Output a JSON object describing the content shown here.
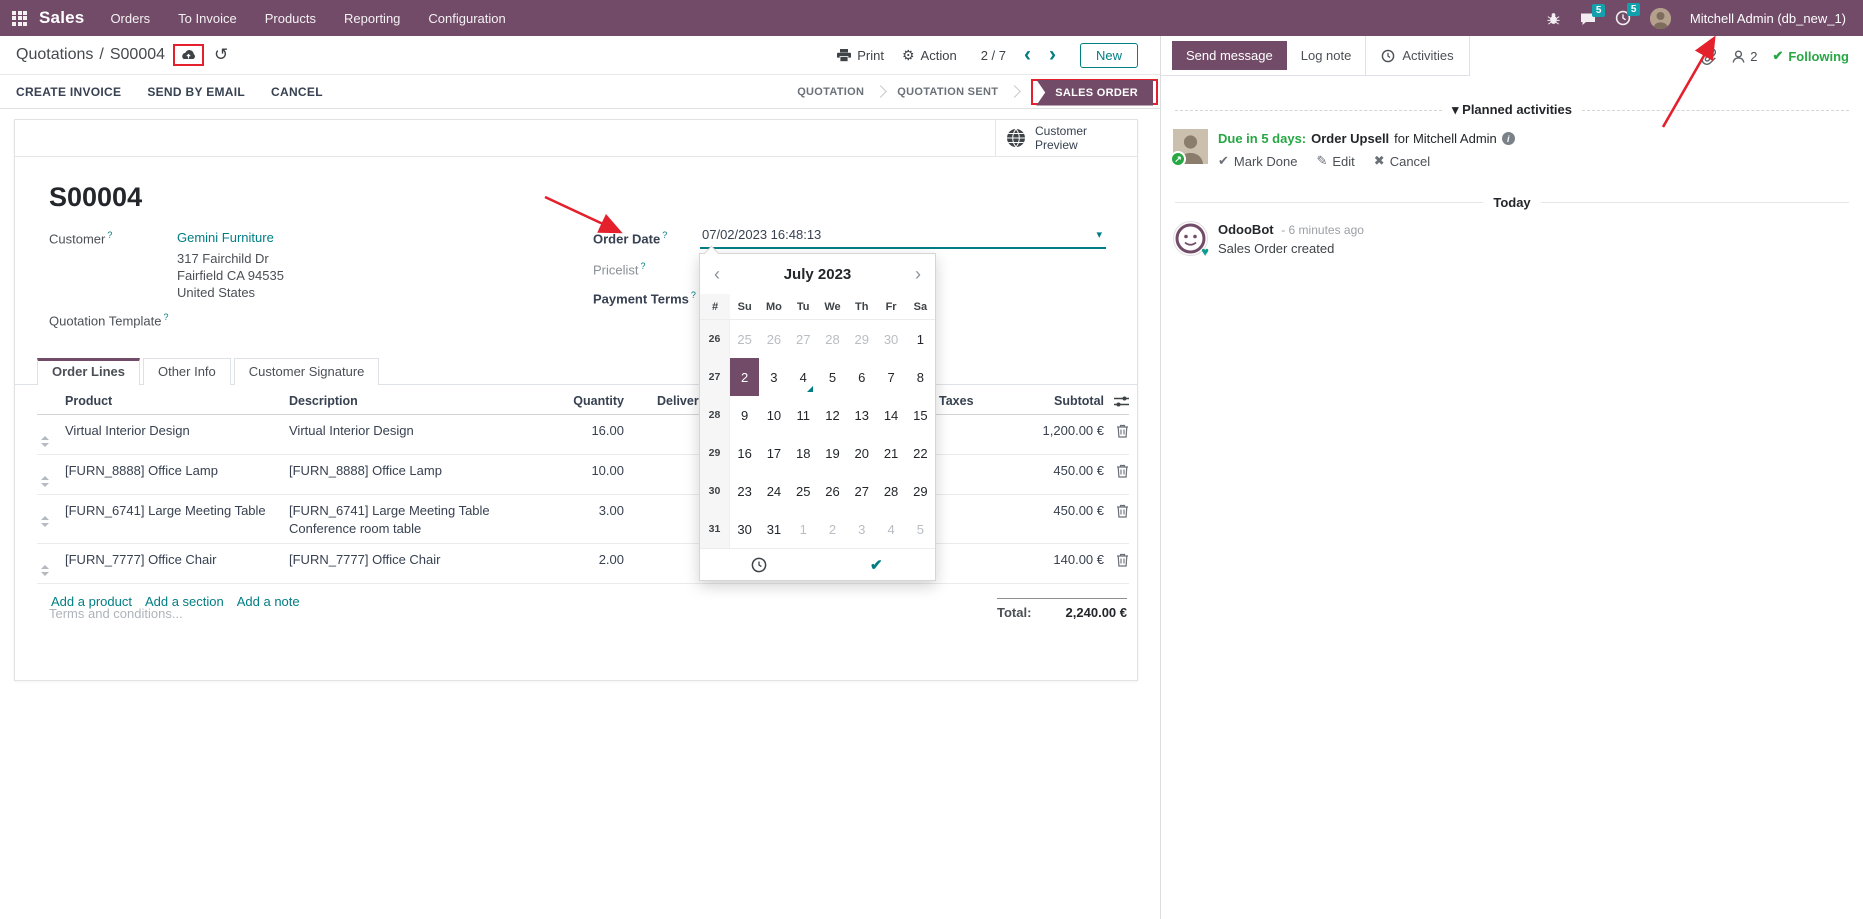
{
  "topbar": {
    "app_name": "Sales",
    "menu": [
      "Orders",
      "To Invoice",
      "Products",
      "Reporting",
      "Configuration"
    ],
    "messages_badge": "5",
    "activities_badge": "5",
    "user": "Mitchell Admin (db_new_1)"
  },
  "breadcrumb": {
    "parent": "Quotations",
    "sep": "/",
    "current": "S00004"
  },
  "control_panel": {
    "print": "Print",
    "action": "Action",
    "pager": "2 / 7",
    "prev": "‹",
    "next": "›",
    "new": "New"
  },
  "action_buttons": {
    "create_invoice": "CREATE INVOICE",
    "send_by_email": "SEND BY EMAIL",
    "cancel": "CANCEL"
  },
  "statusbar": {
    "quotation": "QUOTATION",
    "quotation_sent": "QUOTATION SENT",
    "sales_order": "SALES ORDER"
  },
  "form": {
    "preview_button": "Customer Preview",
    "title": "S00004",
    "customer_label": "Customer",
    "customer_name": "Gemini Furniture",
    "customer_address": [
      "317 Fairchild Dr",
      "Fairfield CA 94535",
      "United States"
    ],
    "quotation_template_label": "Quotation Template",
    "order_date_label": "Order Date",
    "order_date_value": "07/02/2023 16:48:13",
    "pricelist_label": "Pricelist",
    "payment_terms_label": "Payment Terms",
    "tabs": [
      "Order Lines",
      "Other Info",
      "Customer Signature"
    ],
    "table": {
      "headers": {
        "product": "Product",
        "description": "Description",
        "quantity": "Quantity",
        "delivered": "Delivered",
        "taxes": "Taxes",
        "subtotal": "Subtotal"
      },
      "rows": [
        {
          "product": "Virtual Interior Design",
          "desc": [
            "Virtual Interior Design"
          ],
          "qty": "16.00",
          "subtotal": "1,200.00 €"
        },
        {
          "product": "[FURN_8888] Office Lamp",
          "desc": [
            "[FURN_8888] Office Lamp"
          ],
          "qty": "10.00",
          "subtotal": "450.00 €"
        },
        {
          "product": "[FURN_6741] Large Meeting Table",
          "desc": [
            "[FURN_6741] Large Meeting Table",
            "Conference room table"
          ],
          "qty": "3.00",
          "subtotal": "450.00 €"
        },
        {
          "product": "[FURN_7777] Office Chair",
          "desc": [
            "[FURN_7777] Office Chair"
          ],
          "qty": "2.00",
          "subtotal": "140.00 €"
        }
      ],
      "footer_links": [
        "Add a product",
        "Add a section",
        "Add a note"
      ]
    },
    "terms_placeholder": "Terms and conditions...",
    "total_label": "Total:",
    "total_value": "2,240.00 €"
  },
  "datepicker": {
    "month": "July 2023",
    "prev": "‹",
    "next": "›",
    "day_headers": [
      "#",
      "Su",
      "Mo",
      "Tu",
      "We",
      "Th",
      "Fr",
      "Sa"
    ],
    "weeks": [
      {
        "num": "26",
        "days": [
          {
            "d": "25",
            "m": 1
          },
          {
            "d": "26",
            "m": 1
          },
          {
            "d": "27",
            "m": 1
          },
          {
            "d": "28",
            "m": 1
          },
          {
            "d": "29",
            "m": 1
          },
          {
            "d": "30",
            "m": 1
          },
          {
            "d": "1"
          }
        ]
      },
      {
        "num": "27",
        "days": [
          {
            "d": "2",
            "s": 1
          },
          {
            "d": "3"
          },
          {
            "d": "4",
            "t": 1
          },
          {
            "d": "5"
          },
          {
            "d": "6"
          },
          {
            "d": "7"
          },
          {
            "d": "8"
          }
        ]
      },
      {
        "num": "28",
        "days": [
          {
            "d": "9"
          },
          {
            "d": "10"
          },
          {
            "d": "11"
          },
          {
            "d": "12"
          },
          {
            "d": "13"
          },
          {
            "d": "14"
          },
          {
            "d": "15"
          }
        ]
      },
      {
        "num": "29",
        "days": [
          {
            "d": "16"
          },
          {
            "d": "17"
          },
          {
            "d": "18"
          },
          {
            "d": "19"
          },
          {
            "d": "20"
          },
          {
            "d": "21"
          },
          {
            "d": "22"
          }
        ]
      },
      {
        "num": "30",
        "days": [
          {
            "d": "23"
          },
          {
            "d": "24"
          },
          {
            "d": "25"
          },
          {
            "d": "26"
          },
          {
            "d": "27"
          },
          {
            "d": "28"
          },
          {
            "d": "29"
          }
        ]
      },
      {
        "num": "31",
        "days": [
          {
            "d": "30"
          },
          {
            "d": "31"
          },
          {
            "d": "1",
            "m": 1
          },
          {
            "d": "2",
            "m": 1
          },
          {
            "d": "3",
            "m": 1
          },
          {
            "d": "4",
            "m": 1
          },
          {
            "d": "5",
            "m": 1
          }
        ]
      }
    ],
    "confirm_glyph": "✔"
  },
  "chatter": {
    "send_message": "Send message",
    "log_note": "Log note",
    "activities_tab": "Activities",
    "followers_count": "2",
    "following": "Following",
    "planned_activities": "▾ Planned activities",
    "activity": {
      "due": "Due in 5 days:",
      "title": "Order Upsell",
      "for_text": "for Mitchell Admin",
      "mark_done": "Mark Done",
      "edit": "Edit",
      "cancel": "Cancel"
    },
    "today": "Today",
    "message": {
      "author": "OdooBot",
      "time": "- 6 minutes ago",
      "body": "Sales Order created"
    }
  },
  "colors": {
    "brand_purple": "#714B67",
    "accent_teal": "#017e84",
    "badge_teal": "#12a0ad",
    "success_green": "#28a745",
    "annotation_red": "#e4202c"
  }
}
